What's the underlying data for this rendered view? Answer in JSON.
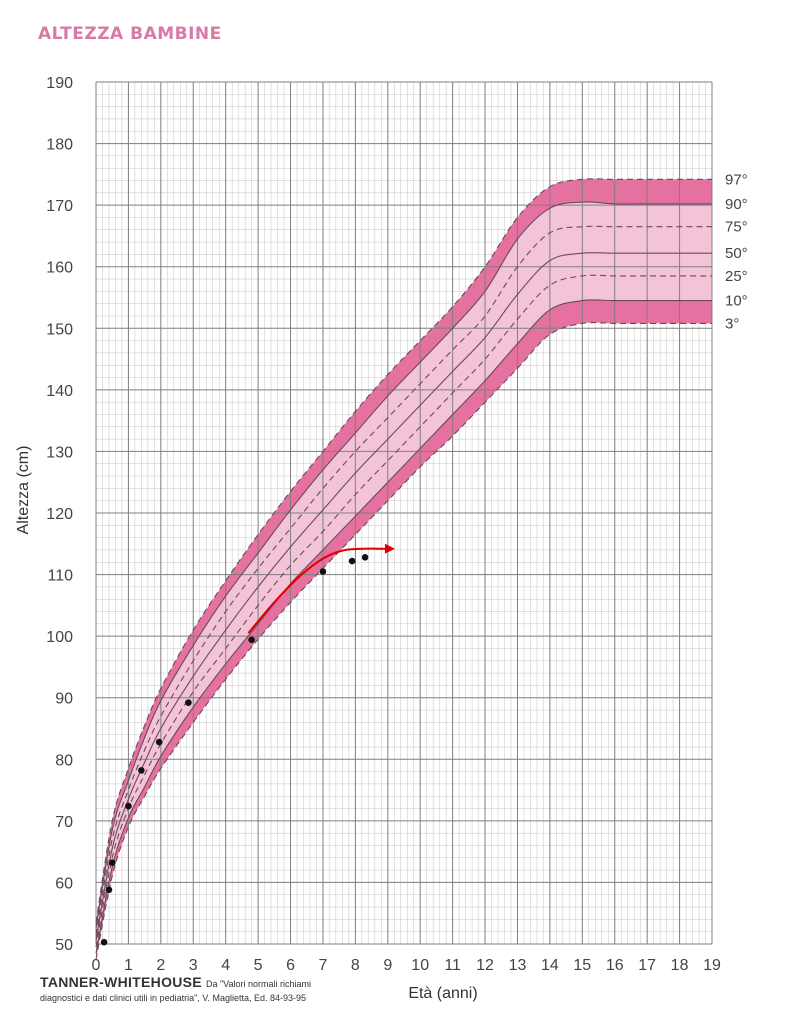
{
  "page_title": "ALTEZZA BAMBINE",
  "source": {
    "main": "TANNER-WHITEHOUSE",
    "note_line1": "Da \"Valori normali richiami",
    "note_line2": "diagnostici e dati clinici utili in pediatria\", V. Maglietta, Ed. 84-93-95"
  },
  "colors": {
    "band_outer": "#e4719f",
    "band_inner": "#f3c4d8",
    "grid_major": "#7f7f7f",
    "grid_minor": "#c4c4c4",
    "points": "#111111",
    "arrow": "#e00000"
  },
  "chart_data": {
    "type": "line",
    "title": "",
    "xlabel": "Età (anni)",
    "ylabel": "Altezza (cm)",
    "xlim": [
      0,
      19
    ],
    "ylim": [
      50,
      190
    ],
    "x_ticks": [
      "0",
      "1",
      "2",
      "3",
      "4",
      "5",
      "6",
      "7",
      "8",
      "9",
      "10",
      "11",
      "12",
      "13",
      "14",
      "15",
      "16",
      "17",
      "18",
      "19"
    ],
    "y_ticks": [
      "50",
      "60",
      "70",
      "80",
      "90",
      "100",
      "110",
      "120",
      "130",
      "140",
      "150",
      "160",
      "170",
      "180",
      "190"
    ],
    "grid": true,
    "series_style": {
      "97°": "dashed",
      "90°": "solid",
      "75°": "dashed",
      "50°": "solid",
      "25°": "dashed",
      "10°": "solid",
      "3°": "dashed"
    },
    "x": [
      0,
      0.5,
      1,
      1.5,
      2,
      3,
      4,
      5,
      6,
      7,
      8,
      9,
      10,
      11,
      12,
      13,
      14,
      15,
      16,
      17,
      18,
      19
    ],
    "series": [
      {
        "name": "97°",
        "values": [
          53.5,
          70,
          78.5,
          85.5,
          91.5,
          101,
          109,
          116.5,
          123.5,
          130,
          136.5,
          142.5,
          148,
          153.5,
          160,
          168,
          173,
          174.2,
          174.2,
          174.2,
          174.2,
          174.2
        ]
      },
      {
        "name": "90°",
        "values": [
          52.5,
          68.5,
          76.5,
          83.5,
          89.5,
          98.5,
          106.5,
          113.5,
          120.5,
          127,
          133,
          139,
          144.5,
          150,
          156,
          164.5,
          169.5,
          170.5,
          170.2,
          170.2,
          170.2,
          170.2
        ]
      },
      {
        "name": "75°",
        "values": [
          51.5,
          67,
          75,
          81.5,
          87,
          96,
          104,
          111,
          117.5,
          124,
          130,
          135.5,
          141,
          146.5,
          152,
          160,
          165.5,
          166.5,
          166.5,
          166.5,
          166.5,
          166.5
        ]
      },
      {
        "name": "50°",
        "values": [
          50.5,
          65.5,
          73.5,
          79.5,
          85,
          93.5,
          101,
          108,
          114.5,
          120.5,
          126.5,
          132,
          137.5,
          143,
          148.5,
          155.5,
          161,
          162.2,
          162.2,
          162.2,
          162.2,
          162.2
        ]
      },
      {
        "name": "25°",
        "values": [
          49.5,
          64,
          72,
          77.5,
          82.5,
          91,
          98,
          105,
          111.5,
          117,
          123,
          128.5,
          134,
          139.5,
          145,
          151.5,
          157,
          158.5,
          158.5,
          158.5,
          158.5,
          158.5
        ]
      },
      {
        "name": "10°",
        "values": [
          48.5,
          62.5,
          70.5,
          75.5,
          80.5,
          88.5,
          95.5,
          102,
          108.5,
          114,
          119.5,
          125,
          130.5,
          136,
          141.5,
          147.5,
          153,
          154.5,
          154.5,
          154.5,
          154.5,
          154.5
        ]
      },
      {
        "name": "3°",
        "values": [
          47.5,
          61,
          69,
          74,
          78.5,
          86,
          93,
          99.5,
          105.5,
          111,
          116.5,
          122,
          127.5,
          132.5,
          138,
          143.5,
          149,
          150.8,
          150.8,
          150.8,
          150.8,
          150.8
        ]
      }
    ],
    "measurements": {
      "x": [
        0.25,
        0.4,
        0.5,
        1,
        1.4,
        1.95,
        2.85,
        4.8,
        7,
        7.9,
        8.3
      ],
      "y": [
        50.3,
        58.8,
        63.2,
        72.4,
        78.2,
        82.8,
        89.2,
        99.4,
        110.5,
        112.2,
        112.8
      ]
    },
    "trend_arrow": {
      "x": [
        4.7,
        5.5,
        6.3,
        7,
        7.6,
        8.2,
        8.7,
        9.1
      ],
      "y": [
        100.5,
        105.5,
        109.8,
        112.6,
        113.9,
        114.2,
        114.2,
        114.2
      ]
    },
    "band_outer": {
      "upper": "97°",
      "lower": "3°"
    },
    "band_inner": {
      "upper": "90°",
      "lower": "10°"
    }
  }
}
